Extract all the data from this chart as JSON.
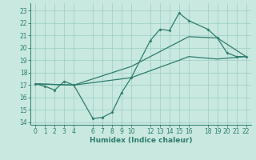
{
  "xlabel": "Humidex (Indice chaleur)",
  "background_color": "#c8e8e0",
  "line_color": "#2e7d6e",
  "grid_color": "#9ecec4",
  "xlim": [
    -0.5,
    22.5
  ],
  "ylim": [
    13.8,
    23.6
  ],
  "yticks": [
    14,
    15,
    16,
    17,
    18,
    19,
    20,
    21,
    22,
    23
  ],
  "xticks": [
    0,
    1,
    2,
    3,
    4,
    6,
    7,
    8,
    9,
    10,
    12,
    13,
    14,
    15,
    16,
    18,
    19,
    20,
    21,
    22
  ],
  "line1_x": [
    0,
    1,
    2,
    3,
    4,
    6,
    7,
    8,
    9,
    10,
    12,
    13,
    14,
    15,
    16,
    18,
    19,
    20,
    21,
    22
  ],
  "line1_y": [
    17.1,
    16.9,
    16.6,
    17.3,
    17.0,
    14.3,
    14.4,
    14.8,
    16.4,
    17.6,
    20.6,
    21.5,
    21.4,
    22.8,
    22.2,
    21.5,
    20.8,
    19.6,
    19.3,
    19.3
  ],
  "line2_x": [
    0,
    4,
    10,
    15,
    16,
    19,
    22
  ],
  "line2_y": [
    17.1,
    17.0,
    18.5,
    20.5,
    20.9,
    20.8,
    19.3
  ],
  "line3_x": [
    0,
    4,
    10,
    15,
    16,
    19,
    22
  ],
  "line3_y": [
    17.1,
    17.0,
    17.6,
    19.0,
    19.3,
    19.1,
    19.3
  ]
}
